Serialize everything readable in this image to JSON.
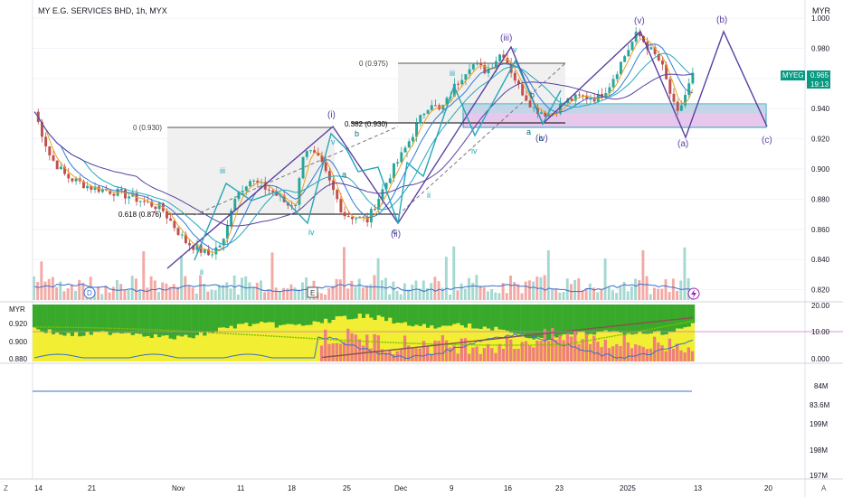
{
  "header": {
    "title": "MY E.G. SERVICES BHD, 1h, MYX",
    "currency": "MYR"
  },
  "price_scale": {
    "ticks": [
      "1.000",
      "0.980",
      "0.960",
      "0.940",
      "0.920",
      "0.900",
      "0.880",
      "0.860",
      "0.840",
      "0.820"
    ],
    "current_symbol": "MYEG",
    "current_price": "0.965",
    "countdown": "19:13"
  },
  "colors": {
    "wave_line": "#5b3fa0",
    "alt_wave": "#26a6b8",
    "up_candle": "#26a69a",
    "down_candle": "#c0504d",
    "volume_up": "#f3a9a4",
    "volume_down": "#a6d8d2",
    "zone_fill": "#e7c7ec",
    "zone_border": "#26a6b8",
    "osc_green": "#38a92a",
    "osc_yellow": "#f2ee33",
    "osc_red": "#ef7e7e",
    "price_label": "#089981"
  },
  "chart_data": [
    {
      "type": "line",
      "title": "MY E.G. SERVICES BHD, 1h, MYX",
      "xlabel": "",
      "ylabel": "",
      "ylim": [
        0.812,
        1.012
      ],
      "x_ticks": [
        "14",
        "21",
        "Nov",
        "11",
        "18",
        "25",
        "Dec",
        "9",
        "16",
        "23",
        "2025",
        "13",
        "20"
      ],
      "series": [
        {
          "name": "",
          "x": [
            0,
            10,
            20,
            35,
            50,
            60,
            80,
            95,
            110,
            120,
            125,
            135,
            150,
            160,
            165,
            170,
            180,
            195,
            210,
            225,
            232,
            245,
            250,
            255,
            260,
            265,
            275,
            285,
            295,
            305,
            315,
            325,
            335,
            345,
            355,
            362,
            372,
            380,
            395,
            405,
            415
          ],
          "values": [
            0.938,
            0.908,
            0.895,
            0.888,
            0.885,
            0.882,
            0.874,
            0.852,
            0.843,
            0.853,
            0.88,
            0.893,
            0.885,
            0.876,
            0.878,
            0.915,
            0.905,
            0.87,
            0.866,
            0.898,
            0.91,
            0.937,
            0.945,
            0.938,
            0.945,
            0.955,
            0.97,
            0.965,
            0.978,
            0.955,
            0.94,
            0.936,
            0.945,
            0.948,
            0.947,
            0.955,
            0.975,
            0.99,
            0.97,
            0.935,
            0.962
          ]
        }
      ],
      "wave_labels": [
        "(i)",
        "(ii)",
        "(iii)",
        "(iv)",
        "(v)",
        "(a)",
        "(b)",
        "(c)",
        "iii",
        "ii",
        "iv",
        "v",
        "i",
        "a",
        "b",
        "c"
      ],
      "fib_labels": [
        "0 (0.930)",
        "0.382 (0.930)",
        "0.618 (0.876)",
        "0 (0.975)"
      ],
      "events": [
        "D",
        "E"
      ]
    },
    {
      "type": "bar",
      "title": "MYR",
      "ylabel": "",
      "left_ticks": [
        "0.920",
        "0.900",
        "0.880"
      ],
      "right_ticks": [
        "20.00",
        "10.00",
        "0.000"
      ],
      "ylim": [
        0,
        20
      ]
    },
    {
      "type": "line",
      "title": "",
      "right_ticks": [
        "84M",
        "83.6M",
        "199M",
        "198M",
        "197M"
      ]
    }
  ],
  "timeline": {
    "labels": [
      "14",
      "21",
      "Nov",
      "11",
      "18",
      "25",
      "Dec",
      "9",
      "16",
      "23",
      "2025",
      "13",
      "20"
    ],
    "z_button": "Z",
    "a_button": "A"
  }
}
